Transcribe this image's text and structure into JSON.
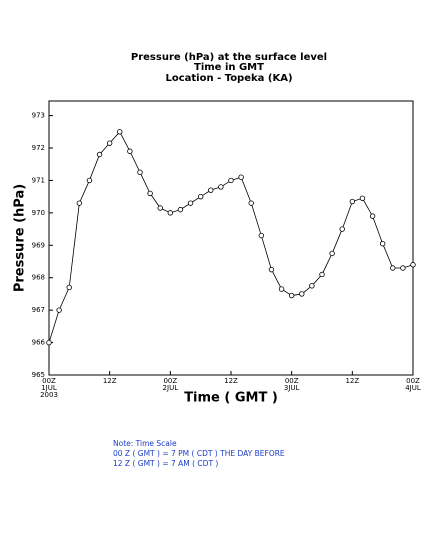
{
  "chart_data": {
    "type": "line",
    "title": [
      "Pressure (hPa) at the surface level",
      "Time in GMT",
      "Location - Topeka (KA)"
    ],
    "x_label": "Time ( GMT )",
    "y_label": "Pressure (hPa)",
    "x": [
      0,
      2,
      4,
      6,
      8,
      10,
      12,
      14,
      16,
      18,
      20,
      22,
      24,
      26,
      28,
      30,
      32,
      34,
      36,
      38,
      40,
      42,
      44,
      46,
      48,
      50,
      52,
      54,
      56,
      58,
      60,
      62,
      64,
      66,
      68,
      70,
      72
    ],
    "series": [
      {
        "name": "Pressure",
        "color": "#000000",
        "values": [
          966.0,
          967.0,
          967.7,
          970.3,
          971.0,
          971.8,
          972.15,
          972.5,
          971.9,
          971.25,
          970.6,
          970.15,
          970.0,
          970.1,
          970.3,
          970.5,
          970.7,
          970.8,
          971.0,
          971.1,
          970.3,
          969.3,
          968.25,
          967.65,
          967.45,
          967.5,
          967.75,
          968.1,
          968.75,
          969.5,
          970.35,
          970.45,
          969.9,
          969.05,
          968.3,
          968.3,
          968.4
        ]
      }
    ],
    "xlim": [
      0,
      72
    ],
    "xticks": [
      {
        "value": 0,
        "label": [
          "00Z",
          "1JUL",
          "2003"
        ]
      },
      {
        "value": 12,
        "label": [
          "12Z"
        ]
      },
      {
        "value": 24,
        "label": [
          "00Z",
          "2JUL"
        ]
      },
      {
        "value": 36,
        "label": [
          "12Z"
        ]
      },
      {
        "value": 48,
        "label": [
          "00Z",
          "3JUL"
        ]
      },
      {
        "value": 60,
        "label": [
          "12Z"
        ]
      },
      {
        "value": 72,
        "label": [
          "00Z",
          "4JUL"
        ]
      }
    ],
    "ylim": [
      965,
      973.45
    ],
    "yticks": [
      965,
      966,
      967,
      968,
      969,
      970,
      971,
      972,
      973
    ],
    "notes": [
      "Note: Time Scale",
      "00 Z ( GMT ) = 7 PM ( CDT ) THE DAY BEFORE",
      "12 Z ( GMT ) = 7 AM ( CDT )"
    ]
  }
}
